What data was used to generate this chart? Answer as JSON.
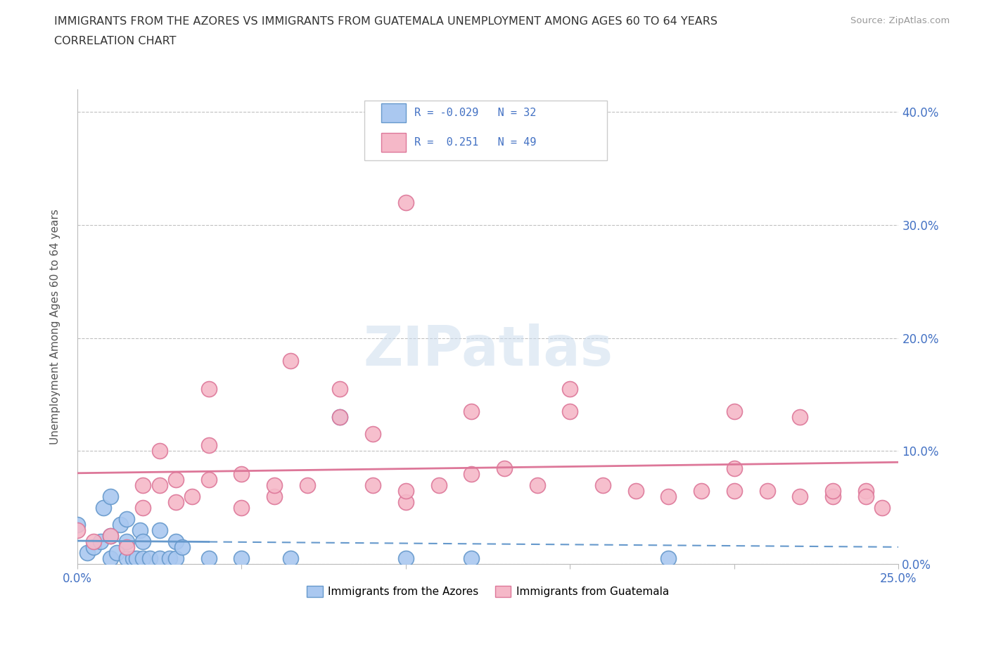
{
  "title_line1": "IMMIGRANTS FROM THE AZORES VS IMMIGRANTS FROM GUATEMALA UNEMPLOYMENT AMONG AGES 60 TO 64 YEARS",
  "title_line2": "CORRELATION CHART",
  "source": "Source: ZipAtlas.com",
  "ylabel": "Unemployment Among Ages 60 to 64 years",
  "xlim": [
    0.0,
    0.25
  ],
  "ylim": [
    0.0,
    0.42
  ],
  "xticks": [
    0.0,
    0.05,
    0.1,
    0.15,
    0.2,
    0.25
  ],
  "yticks": [
    0.0,
    0.1,
    0.2,
    0.3,
    0.4
  ],
  "xtick_labels": [
    "0.0%",
    "",
    "",
    "",
    "",
    "25.0%"
  ],
  "right_ytick_labels": [
    "40.0%",
    "30.0%",
    "20.0%",
    "10.0%",
    "0.0%"
  ],
  "azores_color": "#aac8f0",
  "azores_edge_color": "#6699cc",
  "guatemala_color": "#f5b8c8",
  "guatemala_edge_color": "#dd7799",
  "azores_R": -0.029,
  "azores_N": 32,
  "guatemala_R": 0.251,
  "guatemala_N": 49,
  "watermark": "ZIPatlas",
  "azores_x": [
    0.0,
    0.003,
    0.005,
    0.007,
    0.008,
    0.01,
    0.01,
    0.01,
    0.012,
    0.013,
    0.015,
    0.015,
    0.015,
    0.017,
    0.018,
    0.019,
    0.02,
    0.02,
    0.022,
    0.025,
    0.025,
    0.028,
    0.03,
    0.03,
    0.032,
    0.04,
    0.05,
    0.065,
    0.08,
    0.1,
    0.12,
    0.18
  ],
  "azores_y": [
    0.035,
    0.01,
    0.015,
    0.02,
    0.05,
    0.005,
    0.025,
    0.06,
    0.01,
    0.035,
    0.005,
    0.02,
    0.04,
    0.005,
    0.005,
    0.03,
    0.005,
    0.02,
    0.005,
    0.005,
    0.03,
    0.005,
    0.005,
    0.02,
    0.015,
    0.005,
    0.005,
    0.005,
    0.13,
    0.005,
    0.005,
    0.005
  ],
  "guatemala_x": [
    0.0,
    0.005,
    0.01,
    0.015,
    0.02,
    0.02,
    0.025,
    0.025,
    0.03,
    0.03,
    0.035,
    0.04,
    0.04,
    0.04,
    0.05,
    0.05,
    0.06,
    0.06,
    0.065,
    0.07,
    0.08,
    0.08,
    0.09,
    0.09,
    0.1,
    0.1,
    0.1,
    0.11,
    0.12,
    0.12,
    0.13,
    0.14,
    0.15,
    0.15,
    0.16,
    0.17,
    0.18,
    0.19,
    0.2,
    0.2,
    0.2,
    0.21,
    0.22,
    0.22,
    0.23,
    0.23,
    0.24,
    0.24,
    0.245
  ],
  "guatemala_y": [
    0.03,
    0.02,
    0.025,
    0.015,
    0.05,
    0.07,
    0.07,
    0.1,
    0.055,
    0.075,
    0.06,
    0.075,
    0.105,
    0.155,
    0.05,
    0.08,
    0.06,
    0.07,
    0.18,
    0.07,
    0.13,
    0.155,
    0.07,
    0.115,
    0.055,
    0.065,
    0.32,
    0.07,
    0.08,
    0.135,
    0.085,
    0.07,
    0.135,
    0.155,
    0.07,
    0.065,
    0.06,
    0.065,
    0.065,
    0.085,
    0.135,
    0.065,
    0.06,
    0.13,
    0.06,
    0.065,
    0.065,
    0.06,
    0.05
  ]
}
